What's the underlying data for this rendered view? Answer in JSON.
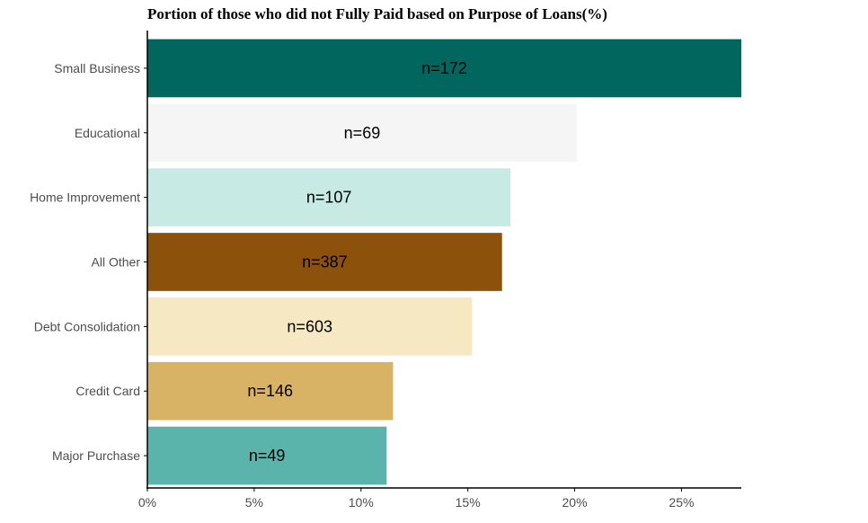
{
  "chart_data": {
    "type": "bar",
    "orientation": "horizontal",
    "title": "Portion of those who did not Fully Paid based on Purpose of Loans(%)",
    "xlabel": "",
    "ylabel": "",
    "xlim": [
      0,
      27.8
    ],
    "x_ticks": [
      0,
      5,
      10,
      15,
      20,
      25
    ],
    "x_tick_labels": [
      "0%",
      "5%",
      "10%",
      "15%",
      "20%",
      "25%"
    ],
    "grid": false,
    "legend": "none",
    "bars": [
      {
        "category": "Small Business",
        "value": 27.8,
        "label": "n=172",
        "color": "#01665e"
      },
      {
        "category": "Educational",
        "value": 20.1,
        "label": "n=69",
        "color": "#f5f5f5"
      },
      {
        "category": "Home Improvement",
        "value": 17.0,
        "label": "n=107",
        "color": "#c7eae5"
      },
      {
        "category": "All Other",
        "value": 16.6,
        "label": "n=387",
        "color": "#8c510a"
      },
      {
        "category": "Debt Consolidation",
        "value": 15.2,
        "label": "n=603",
        "color": "#f6e8c3"
      },
      {
        "category": "Credit Card",
        "value": 11.5,
        "label": "n=146",
        "color": "#d8b365"
      },
      {
        "category": "Major Purchase",
        "value": 11.2,
        "label": "n=49",
        "color": "#5ab4ac"
      }
    ]
  }
}
